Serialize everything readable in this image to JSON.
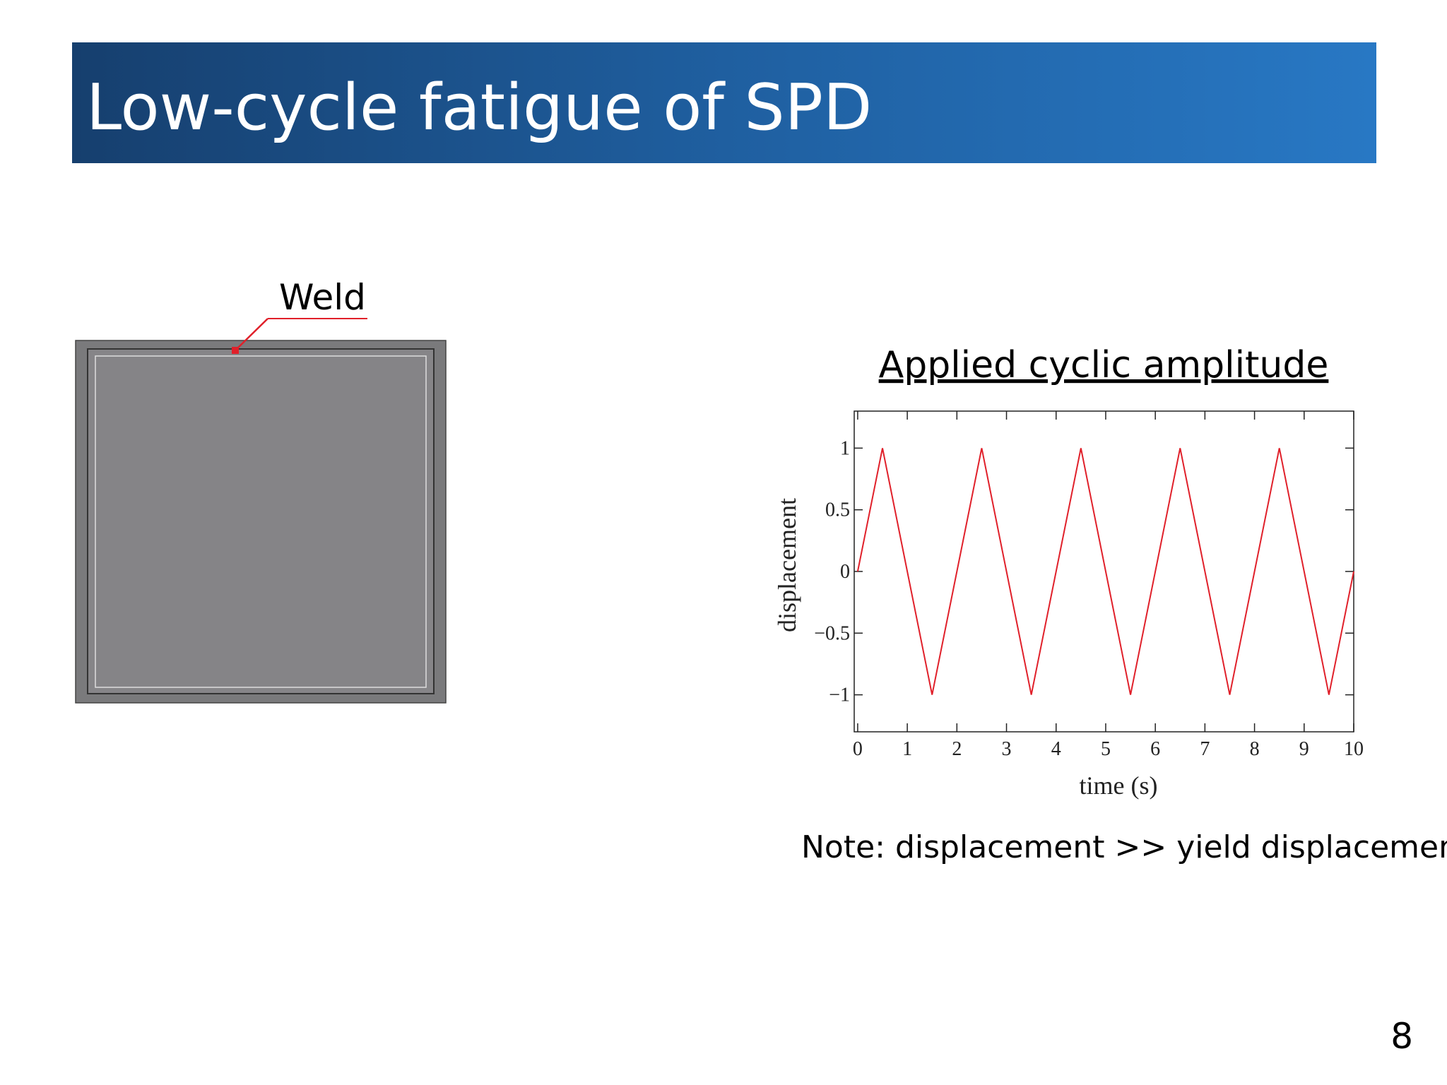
{
  "slide": {
    "title": "Low-cycle fatigue of SPD",
    "page_number": "8"
  },
  "figure": {
    "label": "Weld"
  },
  "chart_data": {
    "type": "line",
    "title": "Applied cyclic amplitude",
    "x_label": "time (s)",
    "y_label": "displacement",
    "x": [
      0,
      0.5,
      1.5,
      2.5,
      3.5,
      4.5,
      5.5,
      6.5,
      7.5,
      8.5,
      9.5,
      10
    ],
    "values": [
      0,
      1,
      -1,
      1,
      -1,
      1,
      -1,
      1,
      -1,
      1,
      -1,
      0
    ],
    "color": "#e0202a",
    "xlim": [
      -0.07,
      10
    ],
    "xticks": [
      0,
      1,
      2,
      3,
      4,
      5,
      6,
      7,
      8,
      9,
      10
    ],
    "ylim": [
      -1.3,
      1.3
    ],
    "yticks": [
      {
        "value": -1,
        "label": "−1"
      },
      {
        "value": -0.5,
        "label": "−0.5"
      },
      0,
      0.5,
      1
    ]
  },
  "note": "Note: displacement >> yield displacement"
}
